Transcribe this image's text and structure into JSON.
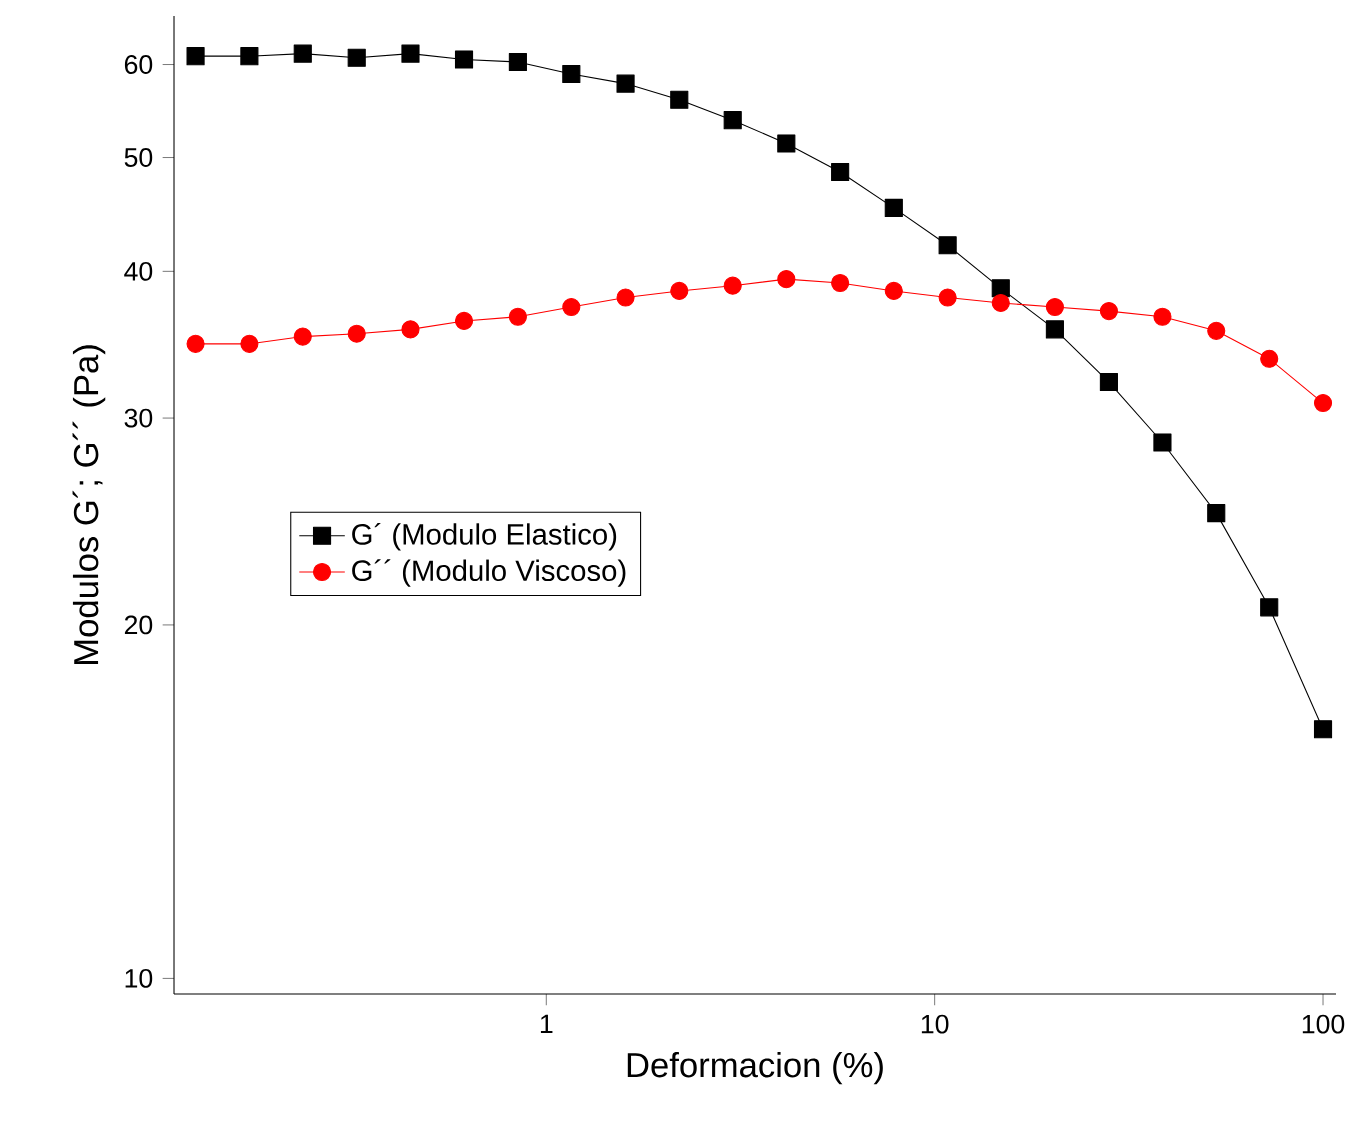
{
  "chart_data": {
    "type": "line",
    "xlabel": "Deformacion (%)",
    "ylabel": "Modulos G´; G´´ (Pa)",
    "log": "xy",
    "x": [
      0.125,
      0.172,
      0.236,
      0.325,
      0.447,
      0.614,
      0.845,
      1.16,
      1.6,
      2.2,
      3.02,
      4.15,
      5.71,
      7.85,
      10.8,
      14.8,
      20.4,
      28.1,
      38.6,
      53.1,
      72.7,
      100
    ],
    "series": [
      {
        "name": "G´ (Modulo Elastico)",
        "color": "#000000",
        "marker": "square",
        "values": [
          61.0,
          61.0,
          61.3,
          60.8,
          61.3,
          60.6,
          60.3,
          58.9,
          57.8,
          56.0,
          53.8,
          51.4,
          48.6,
          45.3,
          42.1,
          38.7,
          35.7,
          32.2,
          28.6,
          24.9,
          20.7,
          16.3
        ]
      },
      {
        "name": "G´´ (Modulo Viscoso)",
        "color": "#ff0000",
        "marker": "circle",
        "values": [
          34.7,
          34.7,
          35.2,
          35.4,
          35.7,
          36.3,
          36.6,
          37.3,
          38.0,
          38.5,
          38.9,
          39.4,
          39.1,
          38.5,
          38.0,
          37.6,
          37.3,
          37.0,
          36.6,
          35.6,
          33.7,
          30.9
        ]
      }
    ],
    "xlim": [
      0.11,
      108
    ],
    "ylim": [
      9.7,
      66
    ],
    "xticks": [
      1,
      10,
      100
    ],
    "yticks": [
      10,
      20,
      30,
      40,
      50,
      60
    ],
    "legend": "left",
    "grid": false,
    "line_style": "solid"
  }
}
